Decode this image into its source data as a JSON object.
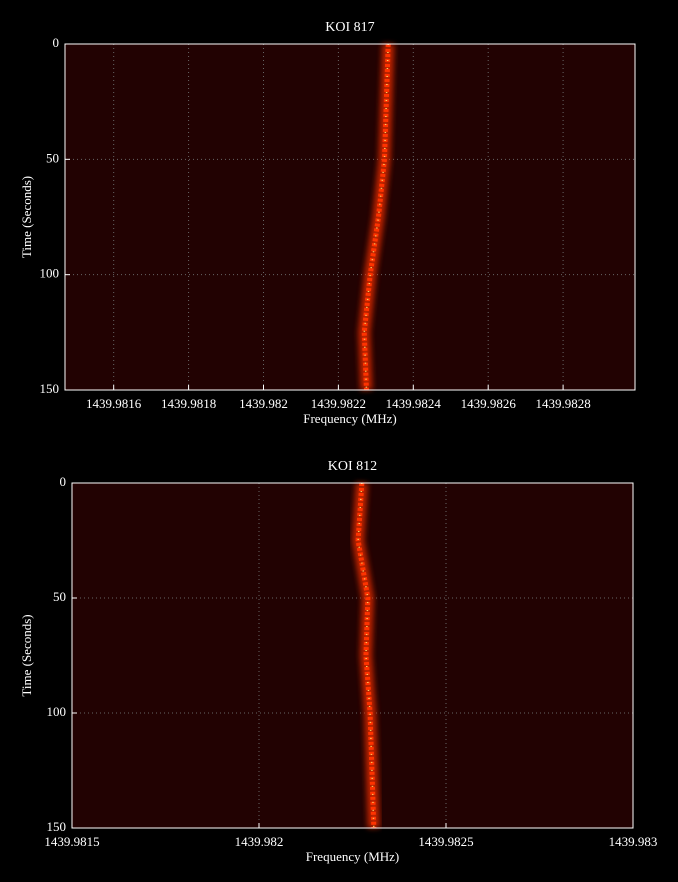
{
  "chart_data": [
    {
      "type": "track",
      "title": "KOI 817",
      "x_label": "Frequency (MHz)",
      "y_label": "Time (Seconds)",
      "x": [
        1439.982333,
        1439.982328,
        1439.982323,
        1439.982307,
        1439.982285,
        1439.982269,
        1439.982275
      ],
      "y": [
        0,
        25,
        50,
        75,
        100,
        125,
        150
      ],
      "color": "#ff3300",
      "xlim": [
        1439.98147,
        1439.982992
      ],
      "ylim": [
        150,
        0
      ],
      "xticks": [
        1439.9816,
        1439.9818,
        1439.982,
        1439.9822,
        1439.9824,
        1439.9826,
        1439.9828
      ],
      "yticks": [
        0,
        50,
        100,
        150
      ],
      "grid": true
    },
    {
      "type": "track",
      "title": "KOI 812",
      "x_label": "Frequency (MHz)",
      "y_label": "Time (Seconds)",
      "x": [
        1439.982275,
        1439.982265,
        1439.982291,
        1439.982286,
        1439.982297,
        1439.982302,
        1439.982307
      ],
      "y": [
        0,
        25,
        50,
        75,
        100,
        125,
        150
      ],
      "color": "#ff3300",
      "xlim": [
        1439.9815,
        1439.983
      ],
      "ylim": [
        150,
        0
      ],
      "xticks": [
        1439.9815,
        1439.982,
        1439.9825,
        1439.983
      ],
      "yticks": [
        0,
        50,
        100,
        150
      ],
      "grid": true
    }
  ]
}
